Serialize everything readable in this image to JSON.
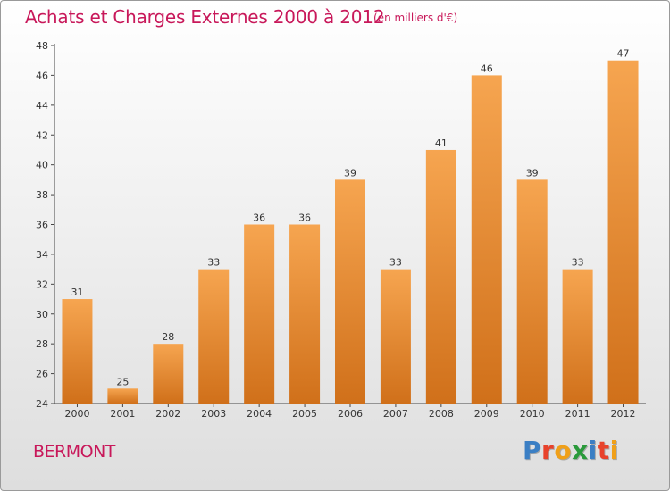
{
  "title": "Achats et Charges Externes 2000 à 2012",
  "unit": "(en milliers d'€)",
  "place": "BERMONT",
  "logo": {
    "text": "Proxiti",
    "colors": [
      "#3b7fc4",
      "#e8422b",
      "#f0a019",
      "#2a9a3b",
      "#3b7fc4",
      "#e8422b",
      "#f0a019"
    ]
  },
  "colors": {
    "bar_top": "#f6a550",
    "bar_bottom": "#d0701a",
    "accent": "#c8185a"
  },
  "chart_data": {
    "type": "bar",
    "title": "Achats et Charges Externes 2000 à 2012",
    "subtitle": "(en milliers d'€)",
    "xlabel": "",
    "ylabel": "",
    "categories": [
      "2000",
      "2001",
      "2002",
      "2003",
      "2004",
      "2005",
      "2006",
      "2007",
      "2008",
      "2009",
      "2010",
      "2011",
      "2012"
    ],
    "values": [
      31,
      25,
      28,
      33,
      36,
      36,
      39,
      33,
      41,
      46,
      39,
      33,
      47
    ],
    "ylim": [
      24,
      48
    ],
    "yticks": [
      24,
      26,
      28,
      30,
      32,
      34,
      36,
      38,
      40,
      42,
      44,
      46,
      48
    ],
    "grid": false,
    "legend": "none"
  }
}
